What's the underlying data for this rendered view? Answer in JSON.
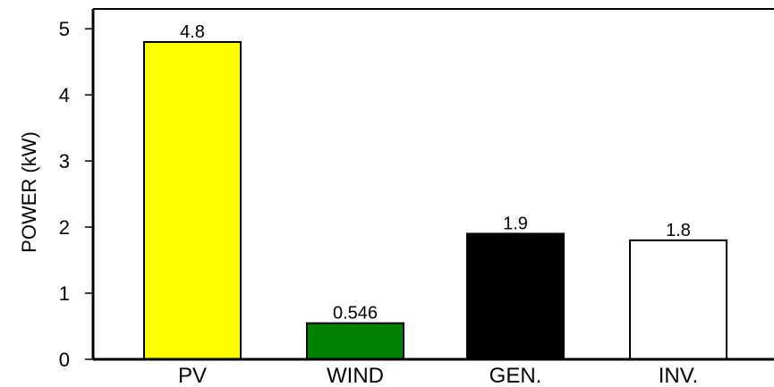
{
  "chart_data": {
    "type": "bar",
    "categories": [
      "PV",
      "WIND",
      "GEN.",
      "INV."
    ],
    "values": [
      4.8,
      0.546,
      1.9,
      1.8
    ],
    "value_labels": [
      "4.8",
      "0.546",
      "1.9",
      "1.8"
    ],
    "bar_colors": [
      "#ffff00",
      "#008000",
      "#000000",
      "#ffffff"
    ],
    "title": "",
    "xlabel": "",
    "ylabel": "POWER (kW)",
    "ylim": [
      0,
      5.3
    ],
    "yticks": [
      0,
      1,
      2,
      3,
      4,
      5
    ],
    "ytick_labels": [
      "0",
      "1",
      "2",
      "3",
      "4",
      "5"
    ],
    "grid": false,
    "legend": "none"
  }
}
